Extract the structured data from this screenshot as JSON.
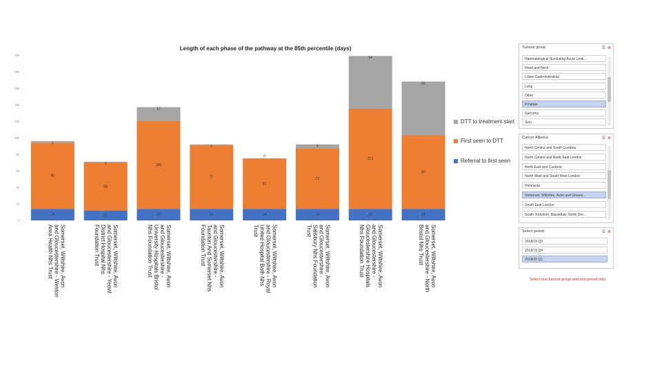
{
  "chart_data": {
    "type": "bar",
    "stacked": true,
    "title": "Length of each phase of the pathway at the 85th percentile (days)",
    "y_ticks": [
      "0",
      "20",
      "40",
      "60",
      "80",
      "100",
      "120",
      "140",
      "160",
      "180",
      "200"
    ],
    "ylim": [
      0,
      200
    ],
    "categories": [
      "Somerset, Wiltshire, Avon and Gloucestershire - Weston Area Health Nhs Trust",
      "Somerset, Wiltshire, Avon and Gloucestershire - Yeovil District Hospital Nhs Foundation Trust",
      "Somerset, Wiltshire, Avon and Gloucestershire - University Hospitals Bristol Nhs Foundation Trust",
      "Somerset, Wiltshire, Avon and Gloucestershire - Taunton And Somerset Nhs Foundation Trust",
      "Somerset, Wiltshire, Avon and Gloucestershire - Royal United Hospital Bath Nhs Trust",
      "Somerset, Wiltshire, Avon and Gloucestershire - Salisbury Nhs Foundation Trust",
      "Somerset, Wiltshire, Avon and Gloucestershire - Gloucestershire Hospitals Nhs Foundation Trust",
      "Somerset, Wiltshire, Avon and Gloucestershire - North Bristol Nhs Trust"
    ],
    "series": [
      {
        "name": "Referral to first seen",
        "color": "#4472c4",
        "values": [
          14,
          12,
          14,
          14,
          14,
          14,
          14,
          14
        ]
      },
      {
        "name": "First seen to DTT",
        "color": "#ed7d31",
        "values": [
          80,
          58,
          106,
          77,
          61,
          73,
          121,
          89
        ]
      },
      {
        "name": "DTT to treatment start",
        "color": "#a5a5a5",
        "values": [
          2,
          1,
          17,
          1,
          0,
          5,
          64,
          65
        ]
      }
    ],
    "legend_position": "right"
  },
  "slicers": {
    "tumour_group": {
      "title": "Tumour group",
      "items": [
        {
          "label": "Haematological (Excluding Acute Leuk...",
          "selected": false
        },
        {
          "label": "Head and Neck",
          "selected": false
        },
        {
          "label": "Lower Gastrointestinal",
          "selected": false
        },
        {
          "label": "Lung",
          "selected": false
        },
        {
          "label": "Other",
          "selected": false
        },
        {
          "label": "Prostate",
          "selected": true
        },
        {
          "label": "Sarcoma",
          "selected": false
        },
        {
          "label": "Skin",
          "selected": false
        }
      ]
    },
    "cancer_alliance": {
      "title": "Cancer Alliance",
      "items": [
        {
          "label": "North Central and South Cumbria",
          "selected": false
        },
        {
          "label": "North Central and North East London",
          "selected": false
        },
        {
          "label": "North East and Cumbria",
          "selected": false
        },
        {
          "label": "North West and South West London",
          "selected": false
        },
        {
          "label": "Peninsula",
          "selected": false
        },
        {
          "label": "Somerset, Wiltshire, Avon and Glouce...",
          "selected": true
        },
        {
          "label": "South East London",
          "selected": false
        },
        {
          "label": "South Yorkshire, Bassetlaw, North Der...",
          "selected": false
        }
      ]
    },
    "period": {
      "title": "Select period",
      "items": [
        {
          "label": "2018/19 Q3",
          "selected": false
        },
        {
          "label": "2018/19 Q4",
          "selected": false
        },
        {
          "label": "2019/20 Q1",
          "selected": true
        }
      ]
    }
  },
  "note": "Select one tumour group and one period only",
  "icons": {
    "multiselect": "multi-select-icon",
    "clear": "clear-filter-icon"
  }
}
